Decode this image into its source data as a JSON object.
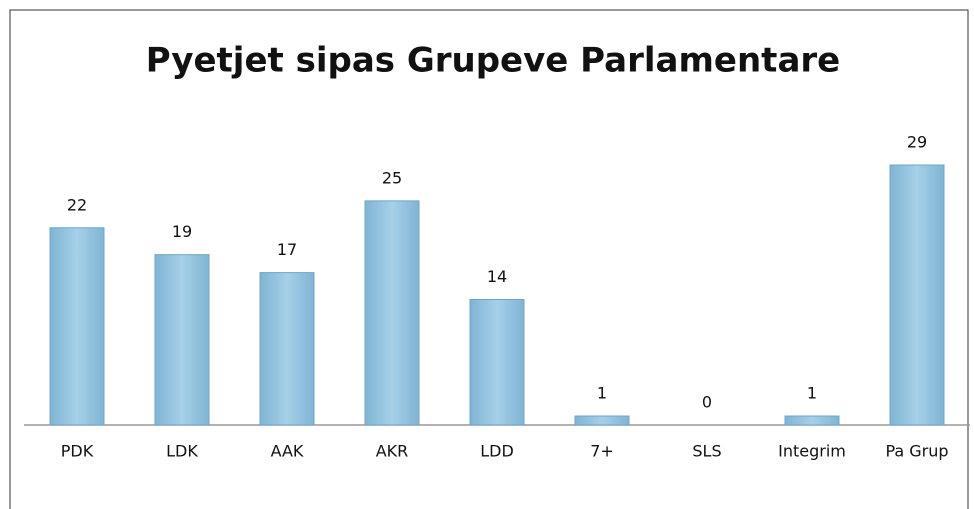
{
  "chart_data": {
    "type": "bar",
    "title": "Pyetjet sipas Grupeve Parlamentare",
    "categories": [
      "PDK",
      "LDK",
      "AAK",
      "AKR",
      "LDD",
      "7+",
      "SLS",
      "Integrim",
      "Pa Grup"
    ],
    "values": [
      22,
      19,
      17,
      25,
      14,
      1,
      0,
      1,
      29
    ],
    "color": "#93c3df"
  }
}
